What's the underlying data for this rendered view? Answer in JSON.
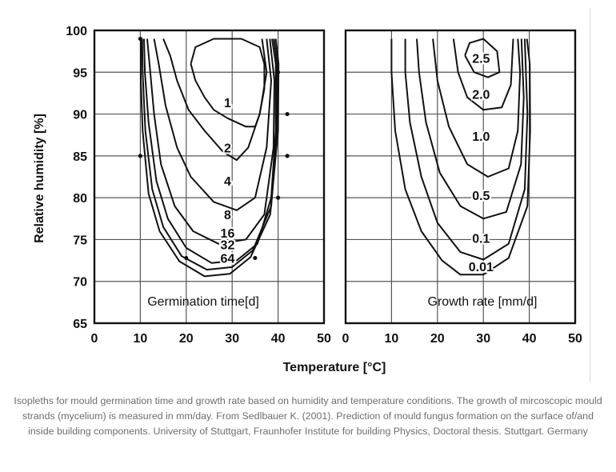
{
  "chart_data": [
    {
      "type": "line",
      "panel_label": "Germination time[d]",
      "ylabel": "Relative humidity [%]",
      "xlabel": "Temperature [°C]",
      "xlim": [
        0,
        50
      ],
      "ylim": [
        65,
        100
      ],
      "xticks": [
        0,
        10,
        20,
        30,
        40,
        50
      ],
      "yticks": [
        65,
        70,
        75,
        80,
        85,
        90,
        95,
        100
      ],
      "grid": true,
      "series": [
        {
          "name": "1",
          "points": [
            [
              21,
              96
            ],
            [
              22,
              98
            ],
            [
              26,
              99
            ],
            [
              32,
              99
            ],
            [
              36,
              98
            ],
            [
              37,
              96
            ],
            [
              37,
              93
            ],
            [
              36,
              90
            ],
            [
              35,
              88.5
            ],
            [
              33,
              88.5
            ],
            [
              29,
              89.5
            ],
            [
              26,
              90.5
            ],
            [
              24,
              92
            ],
            [
              22,
              94
            ],
            [
              21,
              96
            ]
          ]
        },
        {
          "name": "2",
          "points": [
            [
              15,
              99
            ],
            [
              16.5,
              97
            ],
            [
              18,
              94
            ],
            [
              20.5,
              90.5
            ],
            [
              24,
              88
            ],
            [
              28,
              85.5
            ],
            [
              31,
              84.5
            ],
            [
              33.5,
              86
            ],
            [
              36,
              90
            ],
            [
              37.5,
              95
            ],
            [
              36.5,
              99
            ]
          ]
        },
        {
          "name": "4",
          "points": [
            [
              13,
              99
            ],
            [
              14,
              96
            ],
            [
              15.5,
              91
            ],
            [
              18,
              86
            ],
            [
              21,
              82.5
            ],
            [
              26,
              79.5
            ],
            [
              31,
              78.5
            ],
            [
              35,
              80
            ],
            [
              37.5,
              86
            ],
            [
              38.5,
              94
            ],
            [
              37.5,
              99
            ]
          ]
        },
        {
          "name": "8",
          "points": [
            [
              11.5,
              99
            ],
            [
              12,
              96
            ],
            [
              13,
              90
            ],
            [
              14.5,
              84
            ],
            [
              17.5,
              79
            ],
            [
              21.5,
              76
            ],
            [
              27,
              74.5
            ],
            [
              33,
              75
            ],
            [
              37,
              78
            ],
            [
              39,
              86
            ],
            [
              39.2,
              94
            ],
            [
              38.2,
              99
            ]
          ]
        },
        {
          "name": "16",
          "points": [
            [
              10.8,
              99
            ],
            [
              11,
              95
            ],
            [
              11.8,
              89
            ],
            [
              13.5,
              82
            ],
            [
              16,
              77.5
            ],
            [
              20,
              74
            ],
            [
              25.5,
              72.2
            ],
            [
              31,
              72.5
            ],
            [
              35.5,
              74.5
            ],
            [
              38.5,
              80
            ],
            [
              39.5,
              88
            ],
            [
              39.5,
              96
            ],
            [
              38.7,
              99
            ]
          ]
        },
        {
          "name": "32",
          "points": [
            [
              10.4,
              99
            ],
            [
              10.5,
              95
            ],
            [
              11.1,
              88
            ],
            [
              12.6,
              81
            ],
            [
              15,
              76.5
            ],
            [
              19,
              73
            ],
            [
              24.5,
              71.4
            ],
            [
              30,
              71.7
            ],
            [
              34.5,
              73.7
            ],
            [
              38.5,
              79
            ],
            [
              39.8,
              88
            ],
            [
              39.8,
              96
            ],
            [
              39.1,
              99
            ]
          ]
        },
        {
          "name": "64",
          "points": [
            [
              10.1,
              99
            ],
            [
              10.1,
              94
            ],
            [
              10.5,
              88
            ],
            [
              11.8,
              80.5
            ],
            [
              14.2,
              76
            ],
            [
              18.5,
              72.4
            ],
            [
              24,
              70.6
            ],
            [
              29.5,
              70.9
            ],
            [
              34,
              72.9
            ],
            [
              38.3,
              78
            ],
            [
              40,
              88
            ],
            [
              40.1,
              96
            ],
            [
              39.5,
              99
            ]
          ]
        }
      ],
      "markers": [
        [
          10,
          99
        ],
        [
          10,
          85
        ],
        [
          20,
          72.8
        ],
        [
          35,
          72.8
        ],
        [
          40,
          80
        ],
        [
          42,
          85
        ],
        [
          42,
          90
        ],
        [
          40,
          95
        ]
      ]
    },
    {
      "type": "line",
      "panel_label": "Growth rate [mm/d]",
      "xlim": [
        0,
        50
      ],
      "ylim": [
        65,
        100
      ],
      "xticks": [
        0,
        10,
        20,
        30,
        40,
        50
      ],
      "grid": true,
      "series": [
        {
          "name": "2.5",
          "points": [
            [
              26,
              97
            ],
            [
              27,
              98.5
            ],
            [
              30,
              99
            ],
            [
              33,
              97.5
            ],
            [
              33.5,
              95
            ],
            [
              31,
              94.4
            ],
            [
              28,
              95
            ],
            [
              26,
              97
            ]
          ]
        },
        {
          "name": "2.0",
          "points": [
            [
              23.5,
              99
            ],
            [
              24.5,
              95
            ],
            [
              26.5,
              92
            ],
            [
              30,
              90.5
            ],
            [
              34,
              90.8
            ],
            [
              36,
              93.5
            ],
            [
              36.5,
              99
            ]
          ]
        },
        {
          "name": "1.0",
          "points": [
            [
              19,
              99
            ],
            [
              20,
              94
            ],
            [
              22.5,
              88.5
            ],
            [
              26.5,
              84
            ],
            [
              31,
              82.5
            ],
            [
              35.5,
              83.5
            ],
            [
              37.5,
              88
            ],
            [
              38,
              95
            ],
            [
              37.5,
              99
            ]
          ]
        },
        {
          "name": "0.5",
          "points": [
            [
              15.5,
              99
            ],
            [
              16,
              95
            ],
            [
              17.5,
              89
            ],
            [
              20.5,
              83
            ],
            [
              25,
              79
            ],
            [
              30,
              77.5
            ],
            [
              35,
              78.3
            ],
            [
              38.2,
              84
            ],
            [
              38.8,
              92
            ],
            [
              38.3,
              99
            ]
          ]
        },
        {
          "name": "0.1",
          "points": [
            [
              13,
              99
            ],
            [
              13,
              95
            ],
            [
              14,
              89
            ],
            [
              16.5,
              82.5
            ],
            [
              20,
              77
            ],
            [
              25,
              73.5
            ],
            [
              30,
              72.6
            ],
            [
              35.5,
              74.5
            ],
            [
              39,
              81
            ],
            [
              39.6,
              90
            ],
            [
              39,
              99
            ]
          ]
        },
        {
          "name": "0.01",
          "points": [
            [
              10,
              99
            ],
            [
              10,
              95
            ],
            [
              10.8,
              88
            ],
            [
              13,
              81
            ],
            [
              16.5,
              76
            ],
            [
              21,
              72.5
            ],
            [
              25,
              70.8
            ],
            [
              30,
              70.8
            ],
            [
              35.5,
              72.8
            ],
            [
              39.6,
              79
            ],
            [
              40.2,
              88
            ],
            [
              40.1,
              96
            ],
            [
              39.5,
              99
            ]
          ]
        }
      ]
    }
  ],
  "caption": "Isopleths for mould germination time and growth rate based on humidity and temperature conditions. The growth of mircoscopic mould strands (mycelium) is measured in mm/day. From Sedlbauer K. (2001). Prediction of mould fungus formation on the surface of/and inside building components. University of Stuttgart, Fraunhofer Institute for building Physics, Doctoral thesis. Stuttgart. Germany"
}
